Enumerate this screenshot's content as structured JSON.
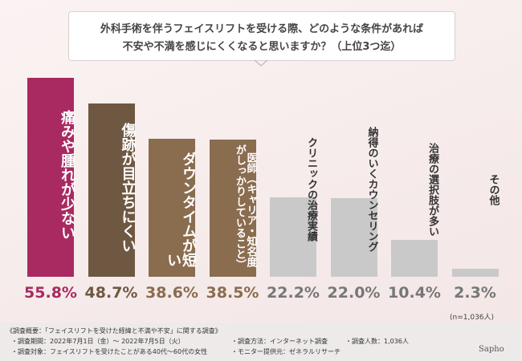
{
  "chart_data": {
    "type": "bar",
    "title": "外科手術を伴うフェイスリフトを受ける際、どのような条件があれば",
    "subtitle": "不安や不満を感じにくくなると思いますか？（上位3つ迄）",
    "categories": [
      "痛みや腫れが少ない",
      "傷跡が目立ちにくい",
      "ダウンタイムが短い",
      "医師（キャリア・知名度がしっかりしていること）",
      "クリニックの治療実績",
      "納得のいくカウンセリング",
      "治療の選択肢が多い",
      "その他"
    ],
    "values": [
      55.8,
      48.7,
      38.6,
      38.5,
      22.2,
      22.0,
      10.4,
      2.3
    ],
    "value_labels": [
      "55.8%",
      "48.7%",
      "38.6%",
      "38.5%",
      "22.2%",
      "22.0%",
      "10.4%",
      "2.3%"
    ],
    "colors": [
      "#a82a61",
      "#6f5842",
      "#8a6c4f",
      "#8a6c4f",
      "#c9c9c9",
      "#c9c9c9",
      "#c9c9c9",
      "#c9c9c9"
    ],
    "label_colors": [
      "#a82a61",
      "#6f5842",
      "#8a6c4f",
      "#8a6c4f",
      "#777777",
      "#777777",
      "#777777",
      "#777777"
    ],
    "category_text_colors": [
      "#ffffff",
      "#ffffff",
      "#ffffff",
      "#ffffff",
      "#333333",
      "#333333",
      "#333333",
      "#333333"
    ],
    "note": "(n=1,036人)"
  },
  "footer": {
    "heading": "《調査概要：「フェイスリフトを受けた経緯と不満や不安」に関する調査》",
    "items": [
      "・調査期間：2022年7月1日（金）〜 2022年7月5日（火）",
      "・調査方法：インターネット調査",
      "・調査人数：1,036人",
      "・調査対象：フェイスリフトを受けたことがある40代〜60代の女性",
      "・モニター提供元：ゼネラルリサーチ"
    ],
    "logo": "Sapho"
  }
}
